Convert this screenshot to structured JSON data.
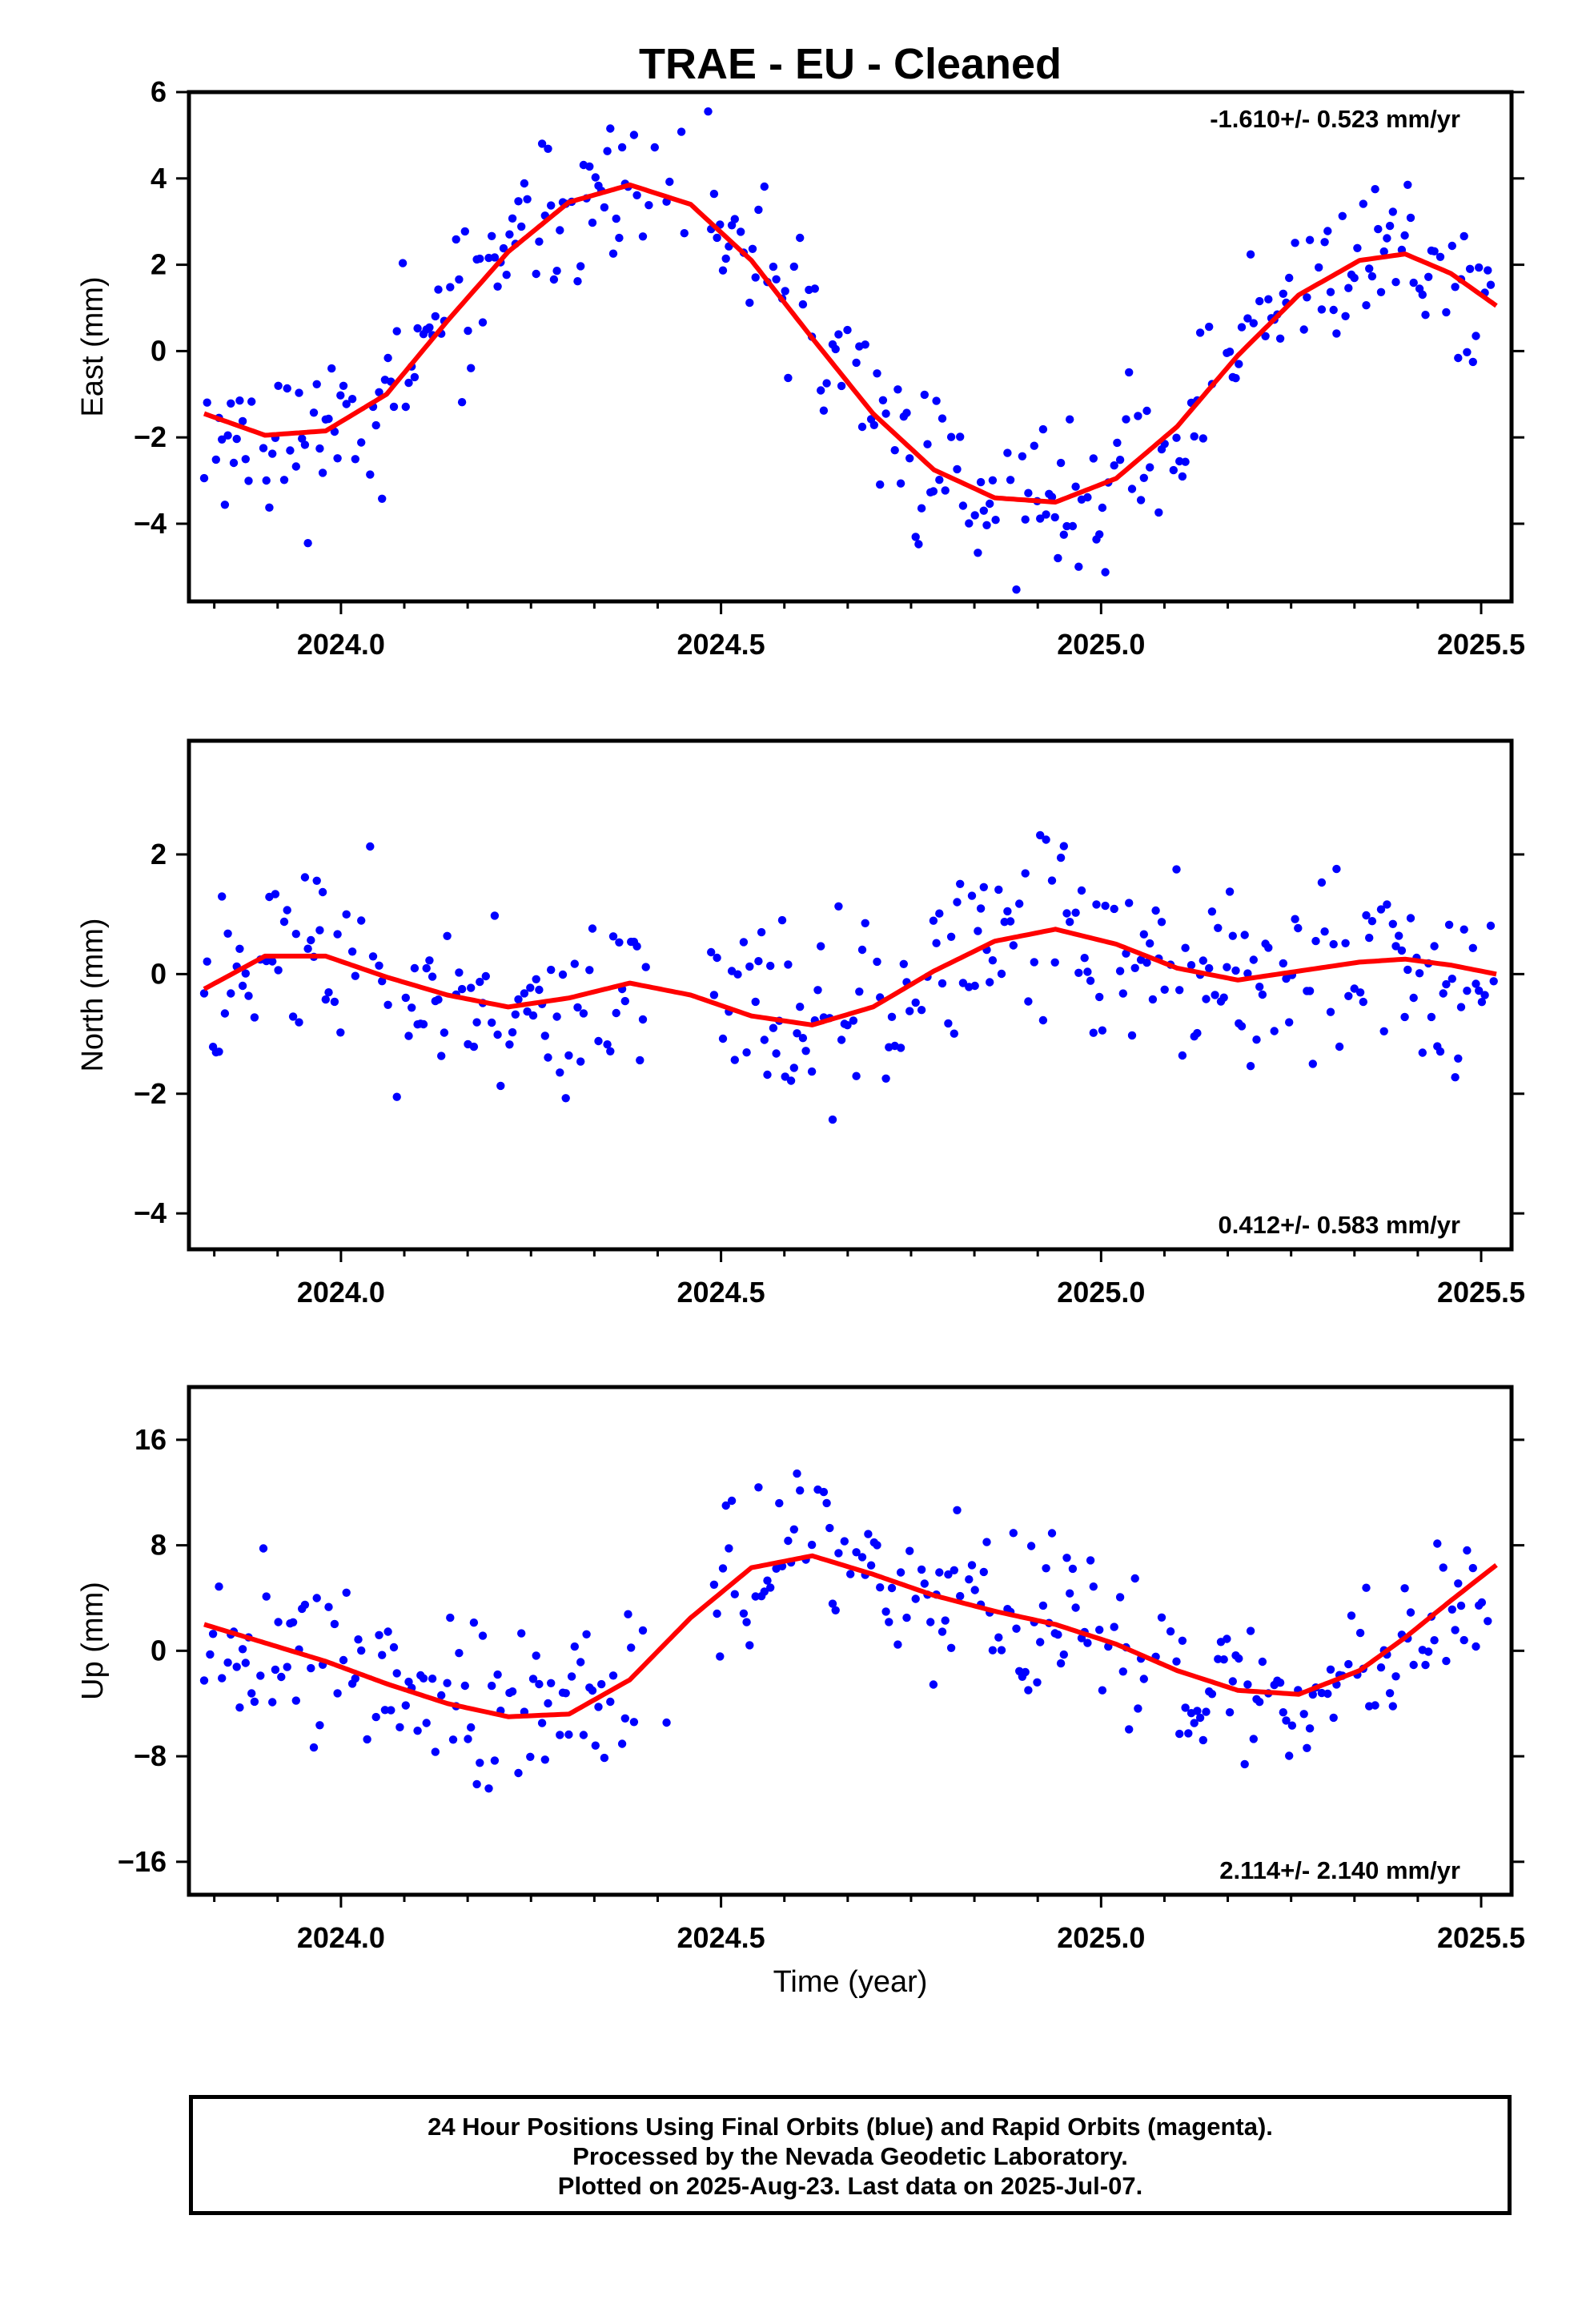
{
  "title": "TRAE  - EU - Cleaned",
  "xlabel": "Time (year)",
  "footer": {
    "line1": "24 Hour Positions Using Final Orbits (blue) and Rapid Orbits (magenta).",
    "line2": "Processed by the Nevada Geodetic Laboratory.",
    "line3": "Plotted on 2025-Aug-23. Last data on 2025-Jul-07."
  },
  "colors": {
    "points": "#0000ff",
    "fit": "#ff0000",
    "axes": "#000000"
  },
  "chart_data": [
    {
      "type": "scatter",
      "ylabel": "East (mm)",
      "rate": "-1.610+/- 0.523 mm/yr",
      "rate_position": "top-right",
      "xlim": [
        2023.8,
        2025.54
      ],
      "ylim": [
        -5.8,
        6.0
      ],
      "xticks": [
        "2024.0",
        "2024.5",
        "2025.0",
        "2025.5"
      ],
      "yticks": [
        -4,
        -2,
        0,
        2,
        4,
        6
      ],
      "grid": false,
      "fit": {
        "x": [
          2023.82,
          2023.9,
          2023.98,
          2024.06,
          2024.14,
          2024.22,
          2024.3,
          2024.38,
          2024.46,
          2024.54,
          2024.62,
          2024.7,
          2024.78,
          2024.86,
          2024.94,
          2025.02,
          2025.1,
          2025.18,
          2025.26,
          2025.34,
          2025.4,
          2025.46,
          2025.52
        ],
        "y": [
          -1.45,
          -1.95,
          -1.85,
          -1.0,
          0.7,
          2.3,
          3.45,
          3.85,
          3.4,
          2.1,
          0.3,
          -1.45,
          -2.75,
          -3.4,
          -3.5,
          -2.95,
          -1.75,
          -0.1,
          1.3,
          2.1,
          2.25,
          1.8,
          1.05
        ]
      },
      "seed": 11,
      "noise": 1.25
    },
    {
      "type": "scatter",
      "ylabel": "North (mm)",
      "rate": "0.412+/- 0.583 mm/yr",
      "rate_position": "bottom-right",
      "xlim": [
        2023.8,
        2025.54
      ],
      "ylim": [
        -4.6,
        3.9
      ],
      "xticks": [
        "2024.0",
        "2024.5",
        "2025.0",
        "2025.5"
      ],
      "yticks": [
        -4,
        -2,
        0,
        2
      ],
      "grid": false,
      "fit": {
        "x": [
          2023.82,
          2023.9,
          2023.98,
          2024.06,
          2024.14,
          2024.22,
          2024.3,
          2024.38,
          2024.46,
          2024.54,
          2024.62,
          2024.7,
          2024.78,
          2024.86,
          2024.94,
          2025.02,
          2025.1,
          2025.18,
          2025.26,
          2025.34,
          2025.4,
          2025.46,
          2025.52
        ],
        "y": [
          -0.25,
          0.3,
          0.3,
          -0.05,
          -0.35,
          -0.55,
          -0.4,
          -0.15,
          -0.35,
          -0.7,
          -0.85,
          -0.55,
          0.05,
          0.55,
          0.75,
          0.5,
          0.1,
          -0.1,
          0.05,
          0.2,
          0.25,
          0.15,
          0.0
        ]
      },
      "seed": 23,
      "noise": 1.0
    },
    {
      "type": "scatter",
      "ylabel": "Up (mm)",
      "rate": "2.114+/- 2.140 mm/yr",
      "rate_position": "bottom-right",
      "xlim": [
        2023.8,
        2025.54
      ],
      "ylim": [
        -18.5,
        20.0
      ],
      "xticks": [
        "2024.0",
        "2024.5",
        "2025.0",
        "2025.5"
      ],
      "yticks": [
        -16,
        -8,
        0,
        8,
        16
      ],
      "grid": false,
      "fit": {
        "x": [
          2023.82,
          2023.9,
          2023.98,
          2024.06,
          2024.14,
          2024.22,
          2024.3,
          2024.38,
          2024.46,
          2024.54,
          2024.62,
          2024.7,
          2024.78,
          2024.86,
          2024.94,
          2025.02,
          2025.1,
          2025.18,
          2025.26,
          2025.34,
          2025.4,
          2025.46,
          2025.52
        ],
        "y": [
          2.0,
          0.6,
          -0.8,
          -2.5,
          -4.0,
          -5.0,
          -4.8,
          -2.2,
          2.5,
          6.3,
          7.2,
          5.8,
          4.2,
          3.0,
          2.0,
          0.5,
          -1.5,
          -3.0,
          -3.3,
          -1.5,
          1.0,
          3.8,
          6.5
        ]
      },
      "seed": 37,
      "noise": 4.2
    }
  ]
}
